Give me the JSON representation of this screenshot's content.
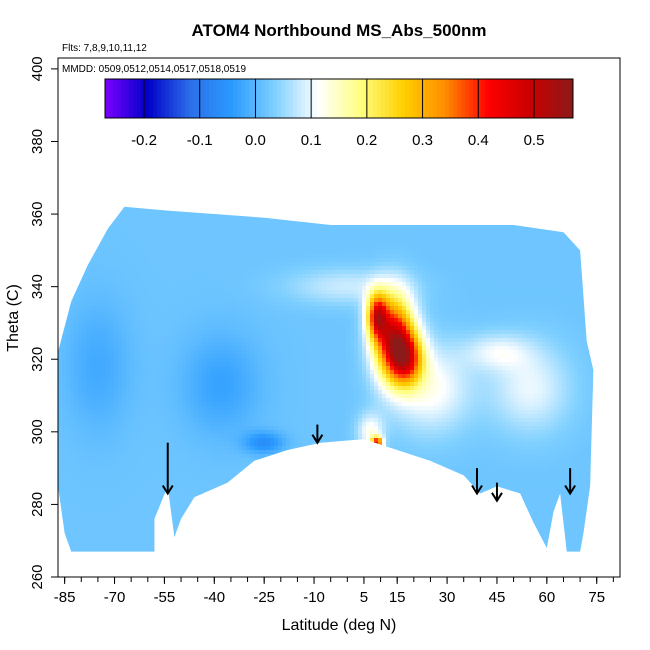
{
  "chart_data": {
    "type": "heatmap",
    "title": "ATOM4 Northbound MS_Abs_500nm",
    "annotations": [
      "Flts: 7,8,9,10,11,12",
      "MMDD: 0509,0512,0514,0517,0518,0519"
    ],
    "xlabel": "Latitude (deg N)",
    "ylabel": "Theta (C)",
    "xlim": [
      -87,
      82
    ],
    "ylim": [
      260,
      403
    ],
    "x_ticks": [
      -85,
      -70,
      -55,
      -40,
      -25,
      -10,
      5,
      15,
      30,
      45,
      60,
      75
    ],
    "x_tick_labels": [
      "-85",
      "-70",
      "-55",
      "-40",
      "-25",
      "-10",
      "5",
      "15",
      "30",
      "45",
      "60",
      "75"
    ],
    "y_ticks": [
      260,
      280,
      300,
      320,
      340,
      360,
      380,
      400
    ],
    "y_tick_labels": [
      "260",
      "280",
      "300",
      "320",
      "340",
      "360",
      "380",
      "400"
    ],
    "colorbar": {
      "min": -0.27,
      "max": 0.57,
      "ticks": [
        -0.2,
        -0.1,
        0.0,
        0.1,
        0.2,
        0.3,
        0.4,
        0.5
      ],
      "tick_labels": [
        "-0.2",
        "-0.1",
        "0.0",
        "0.1",
        "0.2",
        "0.3",
        "0.4",
        "0.5"
      ],
      "colors": [
        "#7a00ff",
        "#0000c8",
        "#2b6fe8",
        "#2a9bff",
        "#7fd0ff",
        "#ffffff",
        "#ffff80",
        "#ffd000",
        "#ff8c00",
        "#ff0000",
        "#c80000",
        "#8b1a1a"
      ]
    },
    "background_value": 0.02,
    "data_region_outline": [
      [
        -87,
        285
      ],
      [
        -87,
        322
      ],
      [
        -83,
        336
      ],
      [
        -78,
        346
      ],
      [
        -72,
        356
      ],
      [
        -67,
        362
      ],
      [
        -55,
        361
      ],
      [
        -25,
        359
      ],
      [
        -5,
        357
      ],
      [
        20,
        357
      ],
      [
        50,
        357
      ],
      [
        65,
        355
      ],
      [
        70,
        350
      ],
      [
        72,
        325
      ],
      [
        74,
        317
      ],
      [
        73,
        285
      ],
      [
        71,
        272
      ],
      [
        70,
        267
      ],
      [
        66,
        267
      ],
      [
        64,
        283
      ],
      [
        62,
        278
      ],
      [
        60,
        268
      ],
      [
        56,
        275
      ],
      [
        52,
        283
      ],
      [
        45,
        285
      ],
      [
        40,
        283
      ],
      [
        35,
        288
      ],
      [
        25,
        292
      ],
      [
        15,
        295
      ],
      [
        5,
        298
      ],
      [
        -8,
        297
      ],
      [
        -18,
        295
      ],
      [
        -28,
        292
      ],
      [
        -36,
        286
      ],
      [
        -46,
        282
      ],
      [
        -50,
        276
      ],
      [
        -52,
        271
      ],
      [
        -54,
        285
      ],
      [
        -58,
        276
      ],
      [
        -58,
        267
      ],
      [
        -83,
        267
      ],
      [
        -85,
        272
      ]
    ],
    "features": [
      {
        "lat": -38,
        "theta": 313,
        "value": -0.03,
        "radius_lat": 12,
        "radius_theta": 14
      },
      {
        "lat": -75,
        "theta": 318,
        "value": -0.02,
        "radius_lat": 10,
        "radius_theta": 18
      },
      {
        "lat": -25,
        "theta": 297,
        "value": -0.06,
        "radius_lat": 6,
        "radius_theta": 3
      },
      {
        "lat": 14,
        "theta": 326,
        "value": 0.46,
        "radius_lat": 6,
        "radius_theta": 11
      },
      {
        "lat": 9,
        "theta": 332,
        "value": 0.36,
        "radius_lat": 3,
        "radius_theta": 6
      },
      {
        "lat": 18,
        "theta": 320,
        "value": 0.3,
        "radius_lat": 5,
        "radius_theta": 7
      },
      {
        "lat": 7,
        "theta": 300,
        "value": 0.12,
        "radius_lat": 4,
        "radius_theta": 5
      },
      {
        "lat": 9,
        "theta": 297,
        "value": 0.4,
        "radius_lat": 1.6,
        "radius_theta": 1.6
      },
      {
        "lat": 25,
        "theta": 312,
        "value": 0.12,
        "radius_lat": 12,
        "radius_theta": 12
      },
      {
        "lat": 55,
        "theta": 312,
        "value": 0.1,
        "radius_lat": 12,
        "radius_theta": 12
      },
      {
        "lat": 45,
        "theta": 322,
        "value": 0.09,
        "radius_lat": 10,
        "radius_theta": 5
      },
      {
        "lat": 0,
        "theta": 340,
        "value": 0.08,
        "radius_lat": 18,
        "radius_theta": 5
      }
    ],
    "arrows": [
      {
        "lat": -54,
        "theta_top": 297,
        "theta_tip": 283
      },
      {
        "lat": -9,
        "theta_top": 302,
        "theta_tip": 297
      },
      {
        "lat": 39,
        "theta_top": 290,
        "theta_tip": 283
      },
      {
        "lat": 45,
        "theta_top": 286,
        "theta_tip": 281
      },
      {
        "lat": 67,
        "theta_top": 290,
        "theta_tip": 283
      }
    ]
  }
}
